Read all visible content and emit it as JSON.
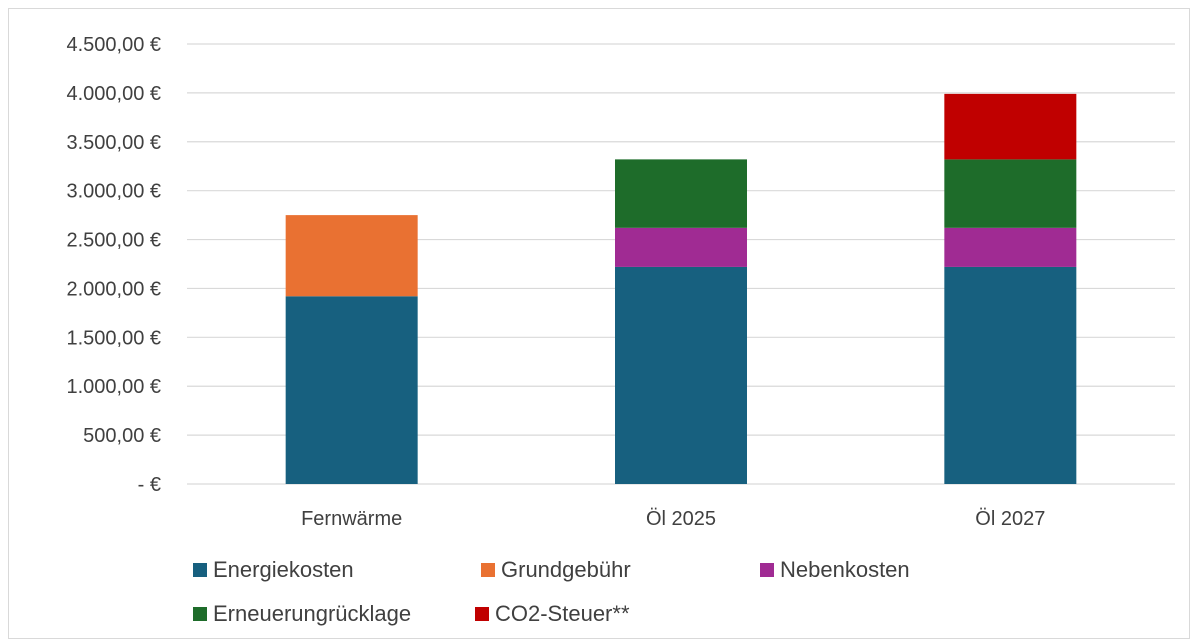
{
  "chart_data": {
    "type": "bar",
    "stacked": true,
    "categories": [
      "Fernwärme",
      "Öl 2025",
      "Öl 2027"
    ],
    "series": [
      {
        "name": "Energiekosten",
        "color": "#17607f",
        "values": [
          1920,
          2220,
          2220
        ]
      },
      {
        "name": "Grundgebühr",
        "color": "#e97132",
        "values": [
          830,
          0,
          0
        ]
      },
      {
        "name": "Nebenkosten",
        "color": "#a02b93",
        "values": [
          0,
          400,
          400
        ]
      },
      {
        "name": "Erneuerungrücklage",
        "color": "#1e6c2a",
        "values": [
          0,
          700,
          700
        ]
      },
      {
        "name": "CO2-Steuer**",
        "color": "#c00000",
        "values": [
          0,
          0,
          670
        ]
      }
    ],
    "ylim": [
      0,
      4500
    ],
    "yticks": [
      0,
      500,
      1000,
      1500,
      2000,
      2500,
      3000,
      3500,
      4000,
      4500
    ],
    "ytick_labels": [
      "-   €",
      "500,00 €",
      "1.000,00 €",
      "1.500,00 €",
      "2.000,00 €",
      "2.500,00 €",
      "3.000,00 €",
      "3.500,00 €",
      "4.000,00 €",
      "4.500,00 €"
    ],
    "grid": true,
    "legend_position": "bottom"
  }
}
